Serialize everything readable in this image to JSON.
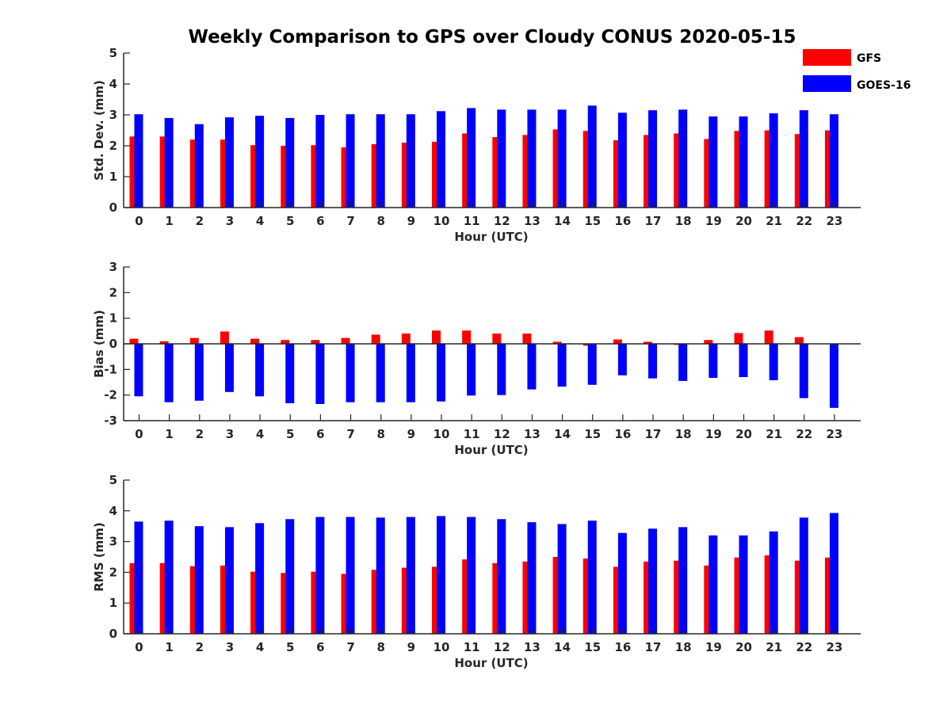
{
  "title": "Weekly Comparison to GPS over Cloudy CONUS 2020-05-15",
  "legend": [
    {
      "name": "GFS",
      "color": "#ff0000"
    },
    {
      "name": "GOES-16",
      "color": "#0000ff"
    }
  ],
  "colors": {
    "gfs": "#ff0000",
    "goes16": "#0000ff",
    "axis": "#262626"
  },
  "chart_data": [
    {
      "type": "bar",
      "ylabel": "Std. Dev. (mm)",
      "xlabel": "Hour (UTC)",
      "ylim": [
        0,
        5
      ],
      "yticks": [
        0,
        1,
        2,
        3,
        4,
        5
      ],
      "categories": [
        "0",
        "1",
        "2",
        "3",
        "4",
        "5",
        "6",
        "7",
        "8",
        "9",
        "10",
        "11",
        "12",
        "13",
        "14",
        "15",
        "16",
        "17",
        "18",
        "19",
        "20",
        "21",
        "22",
        "23"
      ],
      "series": [
        {
          "name": "GFS",
          "values": [
            2.3,
            2.3,
            2.2,
            2.2,
            2.02,
            2.0,
            2.02,
            1.95,
            2.05,
            2.1,
            2.13,
            2.4,
            2.28,
            2.35,
            2.53,
            2.48,
            2.18,
            2.35,
            2.4,
            2.22,
            2.48,
            2.5,
            2.38,
            2.5
          ]
        },
        {
          "name": "GOES-16",
          "values": [
            3.02,
            2.9,
            2.7,
            2.92,
            2.97,
            2.9,
            3.0,
            3.02,
            3.02,
            3.02,
            3.12,
            3.22,
            3.17,
            3.17,
            3.17,
            3.3,
            3.07,
            3.15,
            3.17,
            2.95,
            2.95,
            3.05,
            3.15,
            3.02
          ]
        }
      ]
    },
    {
      "type": "bar",
      "ylabel": "Bias (mm)",
      "xlabel": "Hour (UTC)",
      "ylim": [
        -3,
        3
      ],
      "yticks": [
        -3,
        -2,
        -1,
        0,
        1,
        2,
        3
      ],
      "categories": [
        "0",
        "1",
        "2",
        "3",
        "4",
        "5",
        "6",
        "7",
        "8",
        "9",
        "10",
        "11",
        "12",
        "13",
        "14",
        "15",
        "16",
        "17",
        "18",
        "19",
        "20",
        "21",
        "22",
        "23"
      ],
      "series": [
        {
          "name": "GFS",
          "values": [
            0.2,
            0.1,
            0.23,
            0.48,
            0.2,
            0.15,
            0.15,
            0.23,
            0.36,
            0.4,
            0.52,
            0.52,
            0.4,
            0.4,
            0.08,
            -0.07,
            0.17,
            0.08,
            -0.04,
            0.15,
            0.42,
            0.52,
            0.26,
            0.0
          ]
        },
        {
          "name": "GOES-16",
          "values": [
            -2.05,
            -2.28,
            -2.22,
            -1.88,
            -2.05,
            -2.32,
            -2.35,
            -2.28,
            -2.28,
            -2.28,
            -2.25,
            -2.02,
            -2.0,
            -1.78,
            -1.67,
            -1.6,
            -1.23,
            -1.35,
            -1.45,
            -1.33,
            -1.3,
            -1.42,
            -2.12,
            -2.5
          ]
        }
      ]
    },
    {
      "type": "bar",
      "ylabel": "RMS (mm)",
      "xlabel": "Hour (UTC)",
      "ylim": [
        0,
        5
      ],
      "yticks": [
        0,
        1,
        2,
        3,
        4,
        5
      ],
      "categories": [
        "0",
        "1",
        "2",
        "3",
        "4",
        "5",
        "6",
        "7",
        "8",
        "9",
        "10",
        "11",
        "12",
        "13",
        "14",
        "15",
        "16",
        "17",
        "18",
        "19",
        "20",
        "21",
        "22",
        "23"
      ],
      "series": [
        {
          "name": "GFS",
          "values": [
            2.3,
            2.3,
            2.2,
            2.22,
            2.02,
            1.98,
            2.02,
            1.95,
            2.08,
            2.15,
            2.18,
            2.42,
            2.3,
            2.35,
            2.5,
            2.45,
            2.18,
            2.35,
            2.38,
            2.22,
            2.48,
            2.55,
            2.38,
            2.48
          ]
        },
        {
          "name": "GOES-16",
          "values": [
            3.65,
            3.68,
            3.5,
            3.47,
            3.6,
            3.73,
            3.8,
            3.8,
            3.78,
            3.8,
            3.83,
            3.8,
            3.73,
            3.63,
            3.57,
            3.68,
            3.28,
            3.42,
            3.47,
            3.2,
            3.2,
            3.33,
            3.78,
            3.93
          ]
        }
      ]
    }
  ]
}
